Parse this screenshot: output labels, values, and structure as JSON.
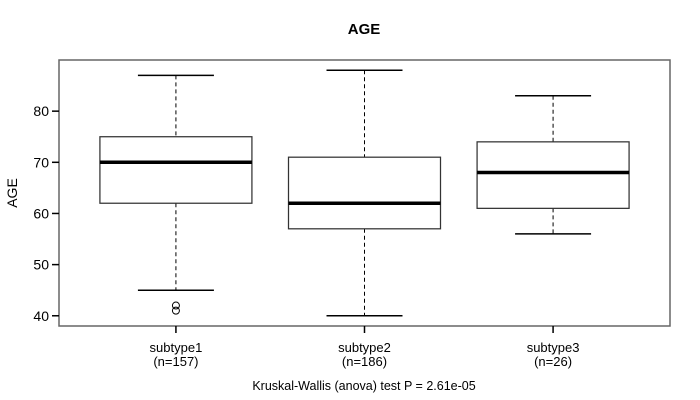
{
  "figure": {
    "background": "#ffffff"
  },
  "chart_data": {
    "type": "boxplot",
    "title": "AGE",
    "ylabel": "AGE",
    "xlabel": "",
    "caption": "Kruskal-Wallis (anova) test P = 2.61e-05",
    "ylim": [
      38,
      90
    ],
    "yticks": [
      40,
      50,
      60,
      70,
      80
    ],
    "grid": false,
    "legend_position": "none",
    "groups": [
      {
        "label": "subtype1",
        "sublabel": "(n=157)",
        "n": 157,
        "whisker_low": 45,
        "q1": 62,
        "median": 70,
        "q3": 75,
        "whisker_high": 87,
        "outliers": [
          42,
          41
        ]
      },
      {
        "label": "subtype2",
        "sublabel": "(n=186)",
        "n": 186,
        "whisker_low": 40,
        "q1": 57,
        "median": 62,
        "q3": 71,
        "whisker_high": 88,
        "outliers": []
      },
      {
        "label": "subtype3",
        "sublabel": "(n=26)",
        "n": 26,
        "whisker_low": 56,
        "q1": 61,
        "median": 68,
        "q3": 74,
        "whisker_high": 83,
        "outliers": []
      }
    ],
    "colors": {
      "line": "#000000",
      "frame": "#666666",
      "box_border": "#333333",
      "box_fill": "#ffffff",
      "text": "#000000",
      "background": "#ffffff"
    }
  }
}
